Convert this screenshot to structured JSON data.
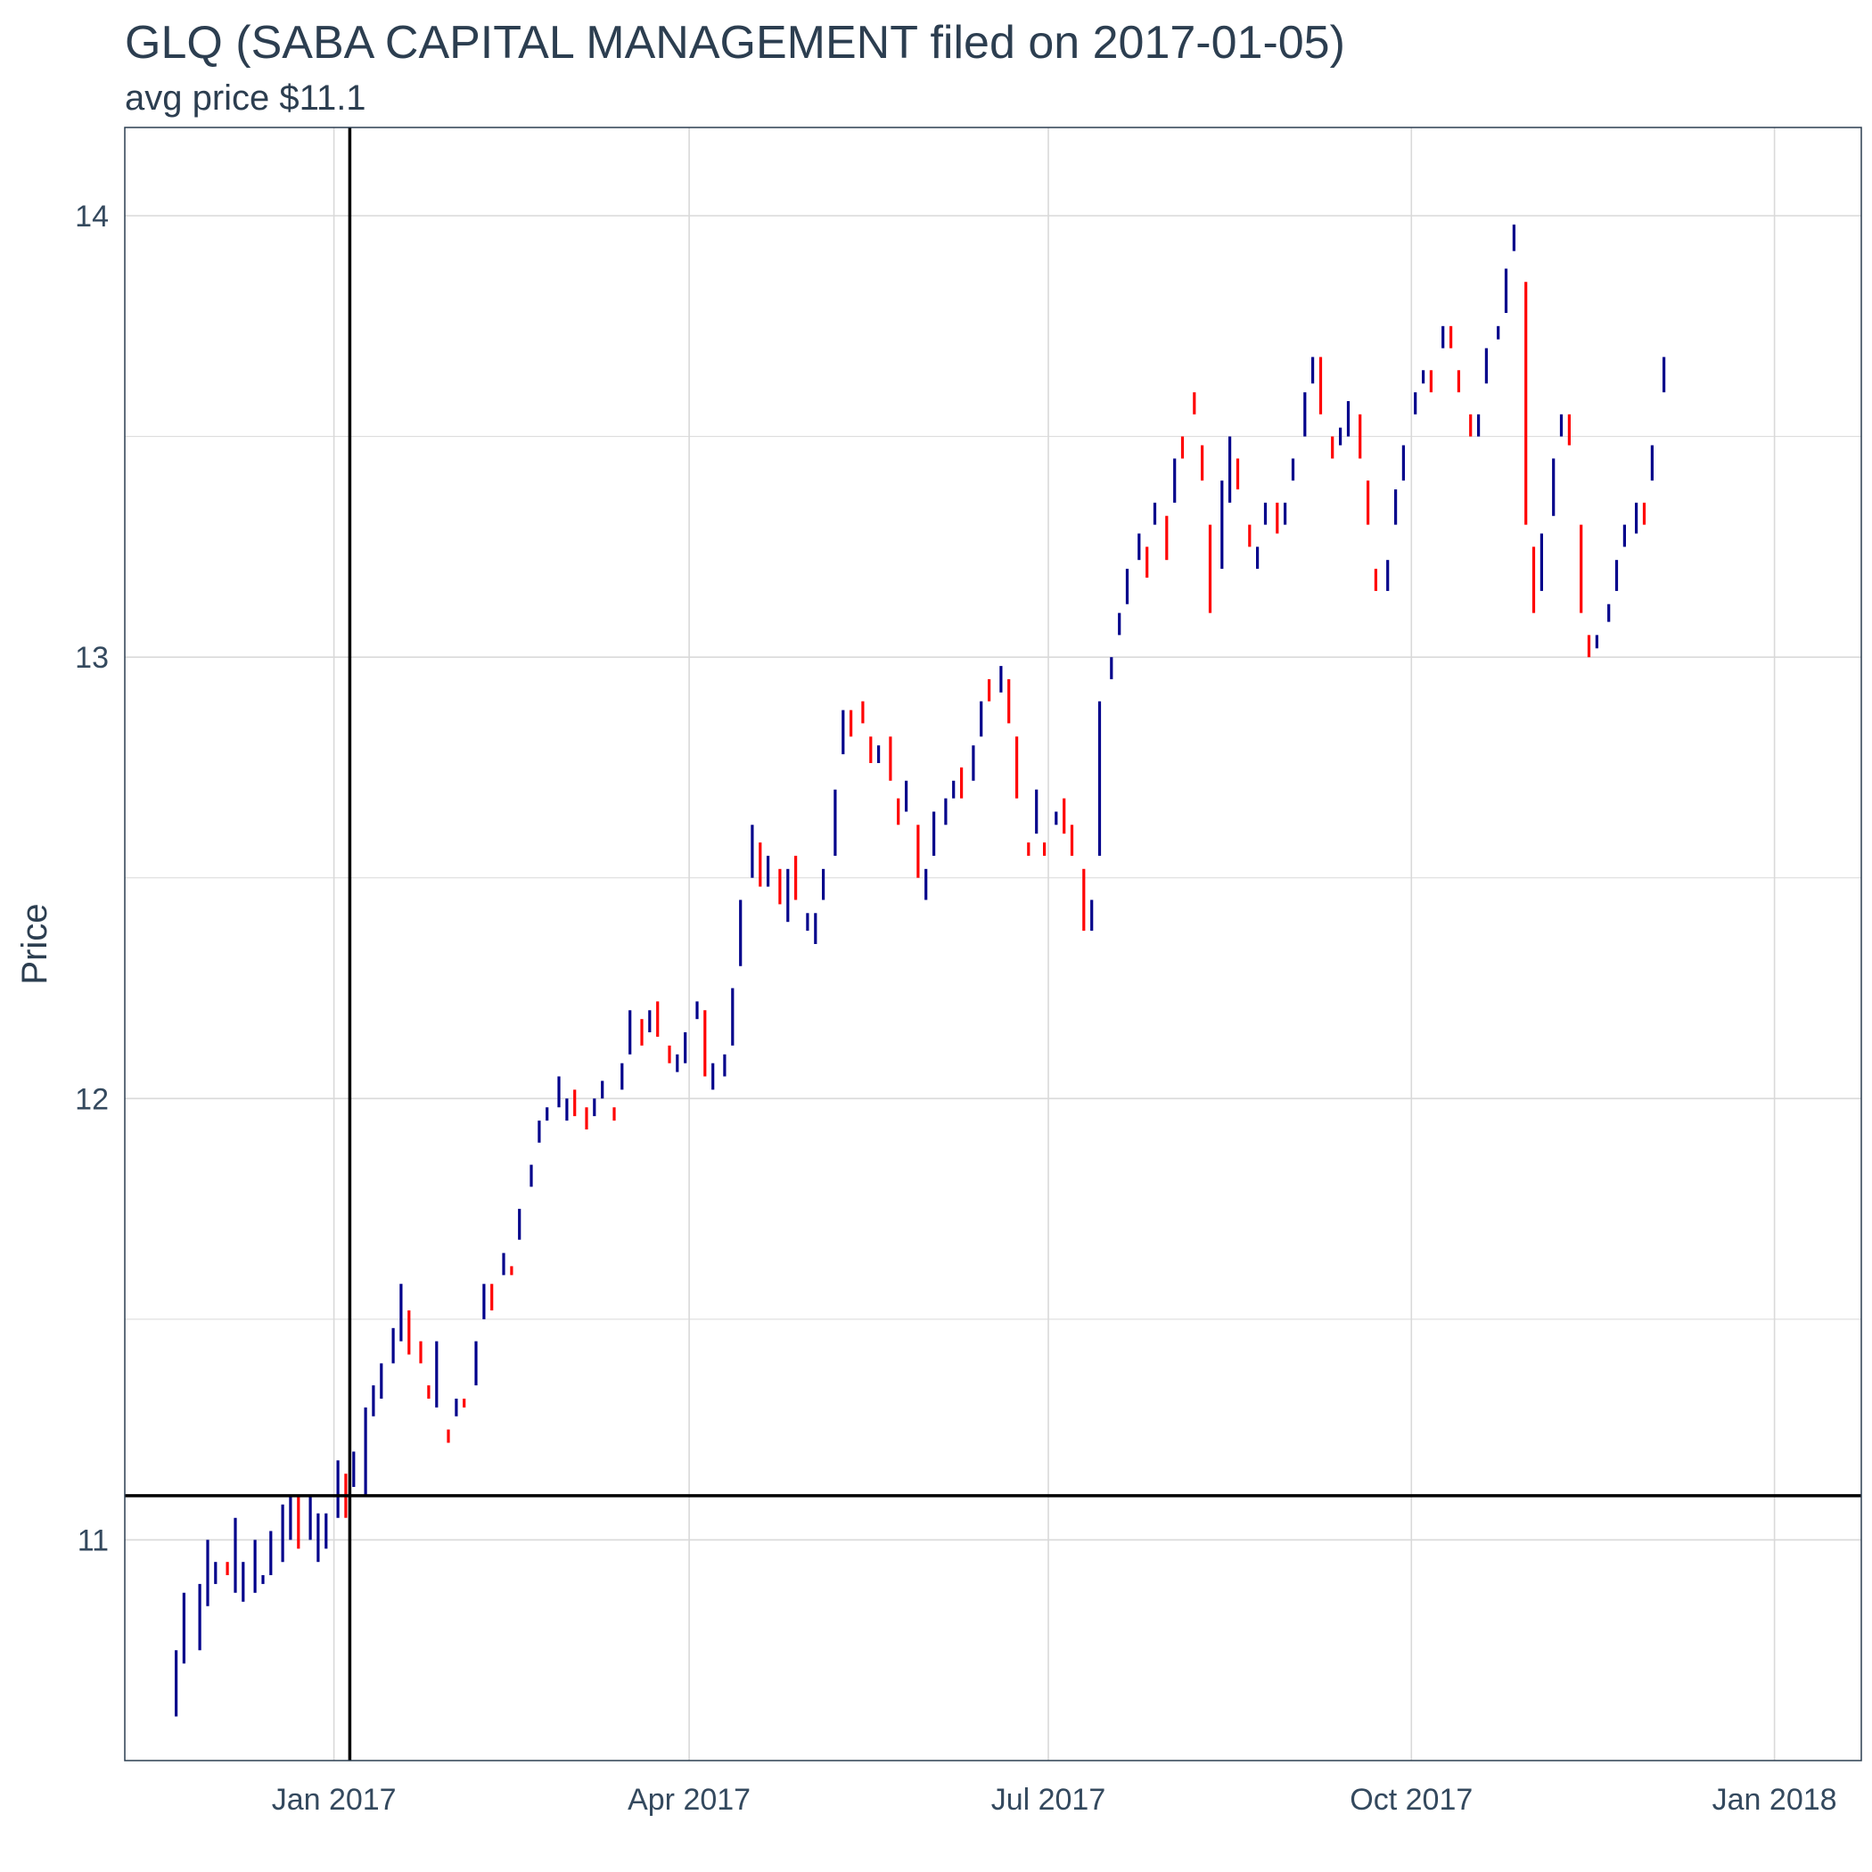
{
  "chart_data": {
    "type": "ohlc",
    "title": "GLQ (SABA CAPITAL MANAGEMENT filed on 2017-01-05)",
    "subtitle": "avg price $11.1",
    "ylabel": "Price",
    "xlabel": "",
    "ylim": [
      10.5,
      14.2
    ],
    "xlim": [
      "2016-11-09",
      "2018-01-23"
    ],
    "y_ticks": [
      11,
      12,
      13,
      14
    ],
    "x_ticks": [
      {
        "date": "2017-01-01",
        "label": "Jan 2017"
      },
      {
        "date": "2017-04-01",
        "label": "Apr 2017"
      },
      {
        "date": "2017-07-01",
        "label": "Jul 2017"
      },
      {
        "date": "2017-10-01",
        "label": "Oct 2017"
      },
      {
        "date": "2018-01-01",
        "label": "Jan 2018"
      }
    ],
    "reference_lines": {
      "filing_date": "2017-01-05",
      "avg_price": 11.1
    },
    "grid": true,
    "colors": {
      "up": "#00008b",
      "down": "#ff0000",
      "reference": "#000000",
      "grid": "#d9d9d9",
      "text": "#2c3e50"
    },
    "start_date": "2016-11-22",
    "points": [
      [
        10.6,
        10.75
      ],
      [
        10.72,
        10.88
      ],
      [
        10.75,
        10.9
      ],
      [
        10.85,
        11.0
      ],
      [
        10.9,
        10.95
      ],
      [
        10.95,
        10.92
      ],
      [
        10.88,
        11.05
      ],
      [
        10.86,
        10.95
      ],
      [
        10.88,
        11.0
      ],
      [
        10.9,
        10.92
      ],
      [
        10.92,
        11.02
      ],
      [
        10.95,
        11.08
      ],
      [
        11.0,
        11.1
      ],
      [
        11.1,
        10.98
      ],
      [
        11.0,
        11.1
      ],
      [
        10.95,
        11.06
      ],
      [
        10.98,
        11.06
      ],
      [
        11.05,
        11.18
      ],
      [
        11.15,
        11.05
      ],
      [
        11.12,
        11.2
      ],
      [
        11.1,
        11.3
      ],
      [
        11.28,
        11.35
      ],
      [
        11.32,
        11.4
      ],
      [
        11.4,
        11.48
      ],
      [
        11.45,
        11.58
      ],
      [
        11.52,
        11.42
      ],
      [
        11.45,
        11.4
      ],
      [
        11.35,
        11.32
      ],
      [
        11.3,
        11.45
      ],
      [
        11.25,
        11.22
      ],
      [
        11.28,
        11.32
      ],
      [
        11.32,
        11.3
      ],
      [
        11.35,
        11.45
      ],
      [
        11.5,
        11.58
      ],
      [
        11.58,
        11.52
      ],
      [
        11.6,
        11.65
      ],
      [
        11.62,
        11.6
      ],
      [
        11.68,
        11.75
      ],
      [
        11.8,
        11.85
      ],
      [
        11.9,
        11.95
      ],
      [
        11.95,
        11.98
      ],
      [
        11.98,
        12.05
      ],
      [
        11.95,
        12.0
      ],
      [
        12.02,
        11.96
      ],
      [
        11.98,
        11.93
      ],
      [
        11.96,
        12.0
      ],
      [
        12.0,
        12.04
      ],
      [
        11.98,
        11.95
      ],
      [
        12.02,
        12.08
      ],
      [
        12.1,
        12.2
      ],
      [
        12.18,
        12.12
      ],
      [
        12.15,
        12.2
      ],
      [
        12.22,
        12.14
      ],
      [
        12.12,
        12.08
      ],
      [
        12.06,
        12.1
      ],
      [
        12.08,
        12.15
      ],
      [
        12.18,
        12.22
      ],
      [
        12.2,
        12.05
      ],
      [
        12.02,
        12.08
      ],
      [
        12.05,
        12.1
      ],
      [
        12.12,
        12.25
      ],
      [
        12.3,
        12.45
      ],
      [
        12.5,
        12.62
      ],
      [
        12.58,
        12.48
      ],
      [
        12.48,
        12.55
      ],
      [
        12.52,
        12.44
      ],
      [
        12.4,
        12.52
      ],
      [
        12.55,
        12.45
      ],
      [
        12.38,
        12.42
      ],
      [
        12.35,
        12.42
      ],
      [
        12.45,
        12.52
      ],
      [
        12.55,
        12.7
      ],
      [
        12.78,
        12.88
      ],
      [
        12.88,
        12.82
      ],
      [
        12.9,
        12.85
      ],
      [
        12.82,
        12.76
      ],
      [
        12.76,
        12.8
      ],
      [
        12.82,
        12.72
      ],
      [
        12.68,
        12.62
      ],
      [
        12.65,
        12.72
      ],
      [
        12.62,
        12.5
      ],
      [
        12.45,
        12.52
      ],
      [
        12.55,
        12.65
      ],
      [
        12.62,
        12.68
      ],
      [
        12.68,
        12.72
      ],
      [
        12.75,
        12.68
      ],
      [
        12.72,
        12.8
      ],
      [
        12.82,
        12.9
      ],
      [
        12.95,
        12.9
      ],
      [
        12.92,
        12.98
      ],
      [
        12.95,
        12.85
      ],
      [
        12.82,
        12.68
      ],
      [
        12.58,
        12.55
      ],
      [
        12.6,
        12.7
      ],
      [
        12.58,
        12.55
      ],
      [
        12.62,
        12.65
      ],
      [
        12.68,
        12.6
      ],
      [
        12.62,
        12.55
      ],
      [
        12.52,
        12.38
      ],
      [
        12.38,
        12.45
      ],
      [
        12.55,
        12.9
      ],
      [
        12.95,
        13.0
      ],
      [
        13.05,
        13.1
      ],
      [
        13.12,
        13.2
      ],
      [
        13.22,
        13.28
      ],
      [
        13.25,
        13.18
      ],
      [
        13.3,
        13.35
      ],
      [
        13.32,
        13.22
      ],
      [
        13.35,
        13.45
      ],
      [
        13.5,
        13.45
      ],
      [
        13.6,
        13.55
      ],
      [
        13.48,
        13.4
      ],
      [
        13.3,
        13.1
      ],
      [
        13.2,
        13.4
      ],
      [
        13.35,
        13.5
      ],
      [
        13.45,
        13.38
      ],
      [
        13.3,
        13.25
      ],
      [
        13.2,
        13.25
      ],
      [
        13.3,
        13.35
      ],
      [
        13.35,
        13.28
      ],
      [
        13.3,
        13.35
      ],
      [
        13.4,
        13.45
      ],
      [
        13.5,
        13.6
      ],
      [
        13.62,
        13.68
      ],
      [
        13.68,
        13.55
      ],
      [
        13.5,
        13.45
      ],
      [
        13.48,
        13.52
      ],
      [
        13.5,
        13.58
      ],
      [
        13.55,
        13.45
      ],
      [
        13.4,
        13.3
      ],
      [
        13.2,
        13.15
      ],
      [
        13.15,
        13.22
      ],
      [
        13.3,
        13.38
      ],
      [
        13.4,
        13.48
      ],
      [
        13.55,
        13.6
      ],
      [
        13.62,
        13.65
      ],
      [
        13.65,
        13.6
      ],
      [
        13.7,
        13.75
      ],
      [
        13.75,
        13.7
      ],
      [
        13.65,
        13.6
      ],
      [
        13.55,
        13.5
      ],
      [
        13.5,
        13.55
      ],
      [
        13.62,
        13.7
      ],
      [
        13.72,
        13.75
      ],
      [
        13.78,
        13.88
      ],
      [
        13.92,
        13.98
      ],
      [
        13.85,
        13.3
      ],
      [
        13.25,
        13.1
      ],
      [
        13.15,
        13.28
      ],
      [
        13.32,
        13.45
      ],
      [
        13.5,
        13.55
      ],
      [
        13.55,
        13.48
      ],
      [
        13.3,
        13.1
      ],
      [
        13.05,
        13.0
      ],
      [
        13.02,
        13.05
      ],
      [
        13.08,
        13.12
      ],
      [
        13.15,
        13.22
      ],
      [
        13.25,
        13.3
      ],
      [
        13.28,
        13.35
      ],
      [
        13.35,
        13.3
      ],
      [
        13.4,
        13.48
      ],
      [
        13.6,
        13.68
      ]
    ]
  }
}
